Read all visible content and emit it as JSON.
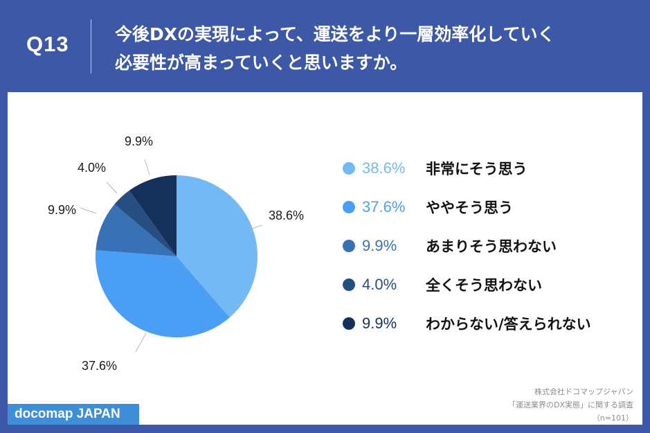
{
  "header": {
    "question_number": "Q13",
    "question_line1": "今後DXの実現によって、運送をより一層効率化していく",
    "question_line2": "必要性が高まっていくと思いますか。"
  },
  "legend": [
    {
      "pct": "38.6%",
      "label": "非常にそう思う",
      "color": "#72b9f5"
    },
    {
      "pct": "37.6%",
      "label": "ややそう思う",
      "color": "#4a9ef3"
    },
    {
      "pct": "9.9%",
      "label": "あまりそう思わない",
      "color": "#3871b5"
    },
    {
      "pct": "4.0%",
      "label": "全くそう思わない",
      "color": "#264e80"
    },
    {
      "pct": "9.9%",
      "label": "わからない/答えられない",
      "color": "#15305b"
    }
  ],
  "pie_labels": [
    "38.6%",
    "37.6%",
    "9.9%",
    "4.0%",
    "9.9%"
  ],
  "credit": {
    "company": "株式会社ドコマップジャパン",
    "survey": "「運送業界のDX実態」に関する調査",
    "sample": "（n=101）"
  },
  "logo": "docomap JAPAN",
  "chart_data": {
    "type": "pie",
    "title": "今後DXの実現によって、運送をより一層効率化していく必要性が高まっていくと思いますか。",
    "categories": [
      "非常にそう思う",
      "ややそう思う",
      "あまりそう思わない",
      "全くそう思わない",
      "わからない/答えられない"
    ],
    "values": [
      38.6,
      37.6,
      9.9,
      4.0,
      9.9
    ],
    "colors": [
      "#72b9f5",
      "#4a9ef3",
      "#3871b5",
      "#264e80",
      "#15305b"
    ],
    "legend_position": "right",
    "n": 101
  }
}
